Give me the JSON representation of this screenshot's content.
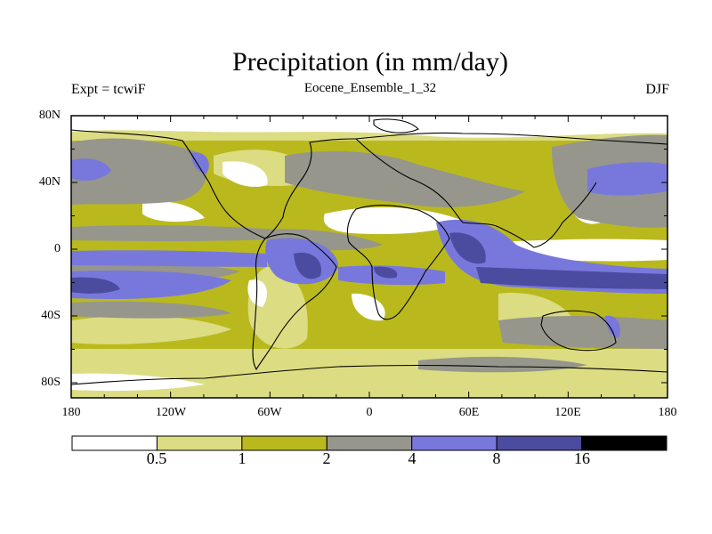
{
  "title": "Precipitation (in mm/day)",
  "left_label": "Expt = tcwiF",
  "center_label": "Eocene_Ensemble_1_32",
  "right_label": "DJF",
  "map": {
    "lat_ticks": [
      "80N",
      "40N",
      "0",
      "40S",
      "80S"
    ],
    "lon_ticks": [
      "180",
      "120W",
      "60W",
      "0",
      "60E",
      "120E",
      "180"
    ],
    "palette": [
      "#ffffff",
      "#dcdc82",
      "#b9b91e",
      "#96968c",
      "#7878dc",
      "#4b4ba0",
      "#000000"
    ],
    "levels": [
      "0.5",
      "1",
      "2",
      "4",
      "8",
      "16"
    ]
  },
  "colorbar": {
    "labels": [
      "0.5",
      "1",
      "2",
      "4",
      "8",
      "16"
    ]
  }
}
